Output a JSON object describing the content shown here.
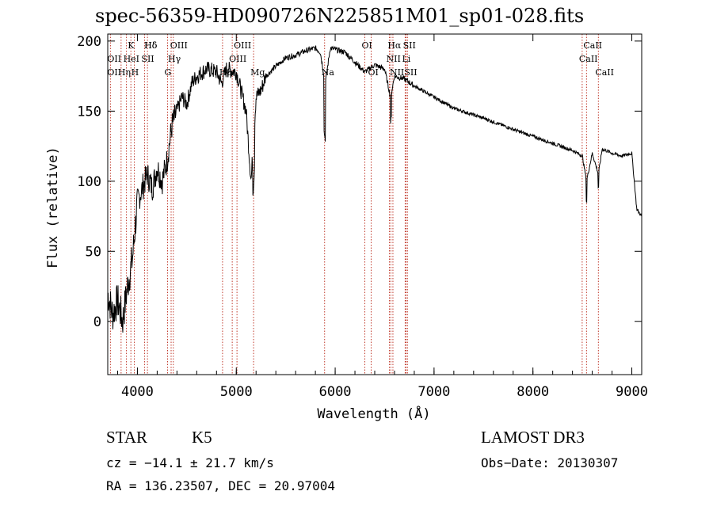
{
  "chart_data": {
    "type": "line",
    "title": "spec-56359-HD090726N225851M01_sp01-028.fits",
    "xlabel": "Wavelength (Å)",
    "ylabel": "Flux (relative)",
    "xlim": [
      3700,
      9100
    ],
    "ylim": [
      -38,
      205
    ],
    "x_ticks": [
      4000,
      5000,
      6000,
      7000,
      8000,
      9000
    ],
    "y_ticks": [
      0,
      50,
      100,
      150,
      200
    ],
    "spectrum_anchors": {
      "x": [
        3700,
        3750,
        3800,
        3850,
        3900,
        3950,
        4000,
        4050,
        4100,
        4150,
        4200,
        4250,
        4300,
        4350,
        4400,
        4450,
        4500,
        4550,
        4600,
        4700,
        4800,
        4850,
        4900,
        5000,
        5100,
        5150,
        5200,
        5250,
        5300,
        5400,
        5500,
        5600,
        5700,
        5800,
        5850,
        5900,
        5950,
        6000,
        6100,
        6200,
        6300,
        6400,
        6500,
        6560,
        6600,
        6700,
        6800,
        7000,
        7200,
        7500,
        7800,
        8000,
        8200,
        8400,
        8500,
        8542,
        8600,
        8662,
        8700,
        8800,
        8900,
        9000,
        9050,
        9100
      ],
      "y": [
        20,
        5,
        15,
        0,
        25,
        45,
        85,
        95,
        105,
        95,
        110,
        100,
        115,
        140,
        150,
        160,
        155,
        170,
        175,
        180,
        178,
        170,
        180,
        178,
        150,
        100,
        160,
        165,
        175,
        182,
        188,
        190,
        193,
        195,
        192,
        170,
        195,
        194,
        192,
        185,
        178,
        183,
        180,
        160,
        175,
        173,
        168,
        160,
        152,
        145,
        137,
        132,
        127,
        122,
        118,
        100,
        120,
        105,
        123,
        120,
        118,
        120,
        80,
        75
      ]
    },
    "lines": [
      {
        "label": "Hδ",
        "x": 4102
      },
      {
        "label": "K",
        "x": 3934
      },
      {
        "label": "Hδ",
        "x": 4102
      },
      {
        "label": "OII",
        "x": 3727
      },
      {
        "label": "HeI",
        "x": 3889
      },
      {
        "label": "SII",
        "x": 4072
      },
      {
        "label": "OII",
        "x": 3727
      },
      {
        "label": "Hη",
        "x": 3835
      },
      {
        "label": "H",
        "x": 3969
      },
      {
        "label": "OIII",
        "x": 4363
      },
      {
        "label": "Hγ",
        "x": 4341
      },
      {
        "label": "G",
        "x": 4305
      },
      {
        "label": "OIII",
        "x": 5007
      },
      {
        "label": "OIII",
        "x": 4959
      },
      {
        "label": "Hβ",
        "x": 4861
      },
      {
        "label": "Mg",
        "x": 5175
      },
      {
        "label": "Na",
        "x": 5893
      },
      {
        "label": "OI",
        "x": 6300
      },
      {
        "label": "OI",
        "x": 6364
      },
      {
        "label": "Hα",
        "x": 6563
      },
      {
        "label": "SII",
        "x": 6717
      },
      {
        "label": "NII",
        "x": 6548
      },
      {
        "label": "Li",
        "x": 6708
      },
      {
        "label": "NII",
        "x": 6584
      },
      {
        "label": "SII",
        "x": 6731
      },
      {
        "label": "CaII",
        "x": 8542
      },
      {
        "label": "CaII",
        "x": 8498
      },
      {
        "label": "CaII",
        "x": 8662
      }
    ]
  },
  "info": {
    "object_class": "STAR",
    "subclass": "K5",
    "survey": "LAMOST DR3",
    "cz": "cz = −14.1 ± 21.7 km/s",
    "obs_date": "Obs−Date: 20130307",
    "coords": "RA = 136.23507, DEC =  20.97004"
  }
}
